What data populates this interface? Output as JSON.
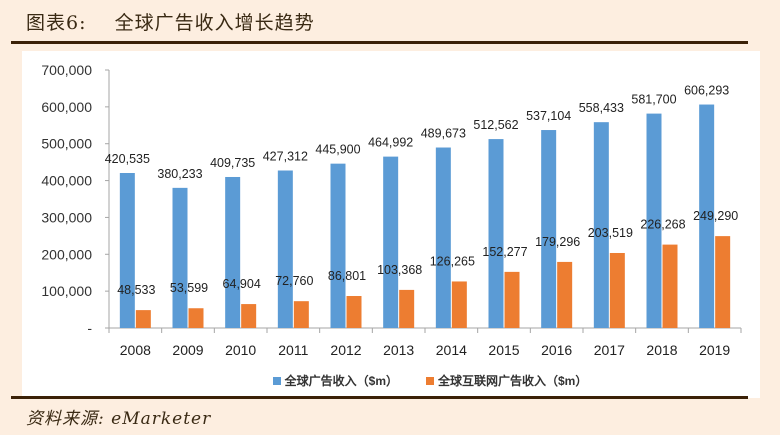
{
  "figure": {
    "title": "图表6:    全球广告收入增长趋势",
    "source": "资料来源: eMarketer"
  },
  "colors": {
    "series_global": "#5b9bd5",
    "series_internet": "#ed7d31",
    "background": "#fdeee0",
    "rule": "#3b2107"
  },
  "chart_data": {
    "type": "bar",
    "title": "全球广告收入增长趋势",
    "xlabel": "",
    "ylabel": "",
    "categories": [
      "2008",
      "2009",
      "2010",
      "2011",
      "2012",
      "2013",
      "2014",
      "2015",
      "2016",
      "2017",
      "2018",
      "2019"
    ],
    "series": [
      {
        "name": "全球广告收入（$m）",
        "color": "#5b9bd5",
        "values": [
          420535,
          380233,
          409735,
          427312,
          445900,
          464992,
          489673,
          512562,
          537104,
          558433,
          581700,
          606293
        ],
        "labels": [
          "420,535",
          "380,233",
          "409,735",
          "427,312",
          "445,900",
          "464,992",
          "489,673",
          "512,562",
          "537,104",
          "558,433",
          "581,700",
          "606,293"
        ]
      },
      {
        "name": "全球互联网广告收入（$m）",
        "color": "#ed7d31",
        "values": [
          48533,
          53599,
          64904,
          72760,
          86801,
          103368,
          126265,
          152277,
          179296,
          203519,
          226268,
          249290
        ],
        "labels": [
          "48,533",
          "53,599",
          "64,904",
          "72,760",
          "86,801",
          "103,368",
          "126,265",
          "152,277",
          "179,296",
          "203,519",
          "226,268",
          "249,290"
        ]
      }
    ],
    "ylim": [
      0,
      700000
    ],
    "yticks": [
      0,
      100000,
      200000,
      300000,
      400000,
      500000,
      600000,
      700000
    ],
    "ytick_labels": [
      "-",
      "100,000",
      "200,000",
      "300,000",
      "400,000",
      "500,000",
      "600,000",
      "700,000"
    ],
    "grid": false,
    "legend_position": "bottom"
  }
}
